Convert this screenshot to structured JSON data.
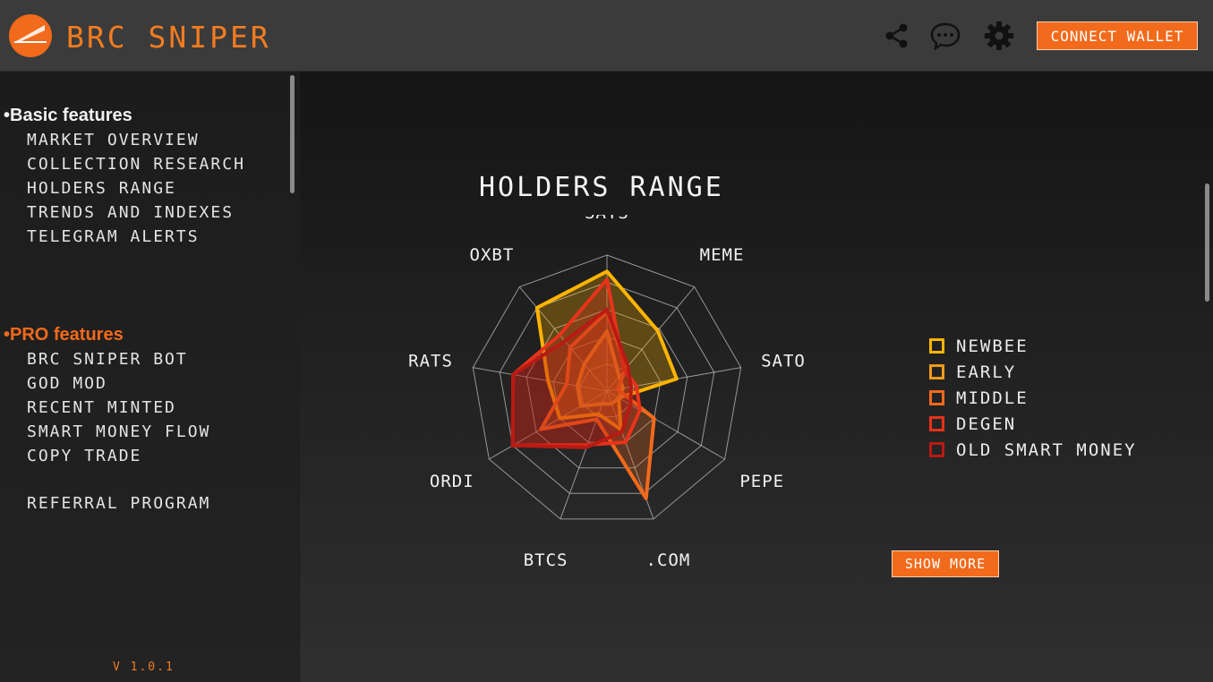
{
  "app": {
    "title": "BRC SNIPER",
    "version": "V 1.0.1"
  },
  "header": {
    "icons": [
      "share-icon",
      "chat-icon",
      "gear-icon"
    ],
    "connect_label": "CONNECT WALLET"
  },
  "sidebar": {
    "basic_title": "•Basic features",
    "basic_items": [
      "MARKET OVERVIEW",
      "COLLECTION RESEARCH",
      "HOLDERS RANGE",
      "TRENDS AND INDEXES",
      "TELEGRAM ALERTS"
    ],
    "pro_title": "•PRO features",
    "pro_items": [
      "BRC SNIPER BOT",
      "GOD MOD",
      "RECENT MINTED",
      "SMART MONEY FLOW",
      "COPY TRADE"
    ],
    "referral": "REFERRAL PROGRAM"
  },
  "colors": {
    "accent": "#f26a1b",
    "header_bg": "#3b3b3b"
  },
  "chart_data": {
    "type": "radar",
    "title": "HOLDERS RANGE",
    "axes": [
      "SATS",
      "MEME",
      "SATO",
      "PEPE",
      ".COM",
      "BTCS",
      "ORDI",
      "RATS",
      "OXBT"
    ],
    "range": [
      0,
      5
    ],
    "gridlines": 5,
    "legend_position": "right",
    "series": [
      {
        "name": "NEWBEE",
        "color": "#ffb400",
        "values": [
          4.4,
          2.9,
          2.6,
          0.5,
          1.5,
          0.9,
          2.0,
          2.2,
          4.0
        ]
      },
      {
        "name": "EARLY",
        "color": "#f39a1c",
        "values": [
          2.2,
          0.7,
          0.6,
          0.5,
          0.5,
          0.5,
          1.1,
          1.1,
          1.3
        ]
      },
      {
        "name": "MIDDLE",
        "color": "#f26a1b",
        "values": [
          2.9,
          1.1,
          0.4,
          2.0,
          4.2,
          1.1,
          2.8,
          1.5,
          2.1
        ]
      },
      {
        "name": "DEGEN",
        "color": "#e8331a",
        "values": [
          4.1,
          1.0,
          1.1,
          1.4,
          2.0,
          2.1,
          4.0,
          3.5,
          2.7
        ]
      },
      {
        "name": "OLD SMART MONEY",
        "color": "#b81a14",
        "values": [
          3.0,
          1.2,
          0.9,
          1.0,
          1.6,
          2.2,
          4.0,
          3.5,
          2.4
        ]
      }
    ]
  },
  "show_more_label": "SHOW MORE"
}
